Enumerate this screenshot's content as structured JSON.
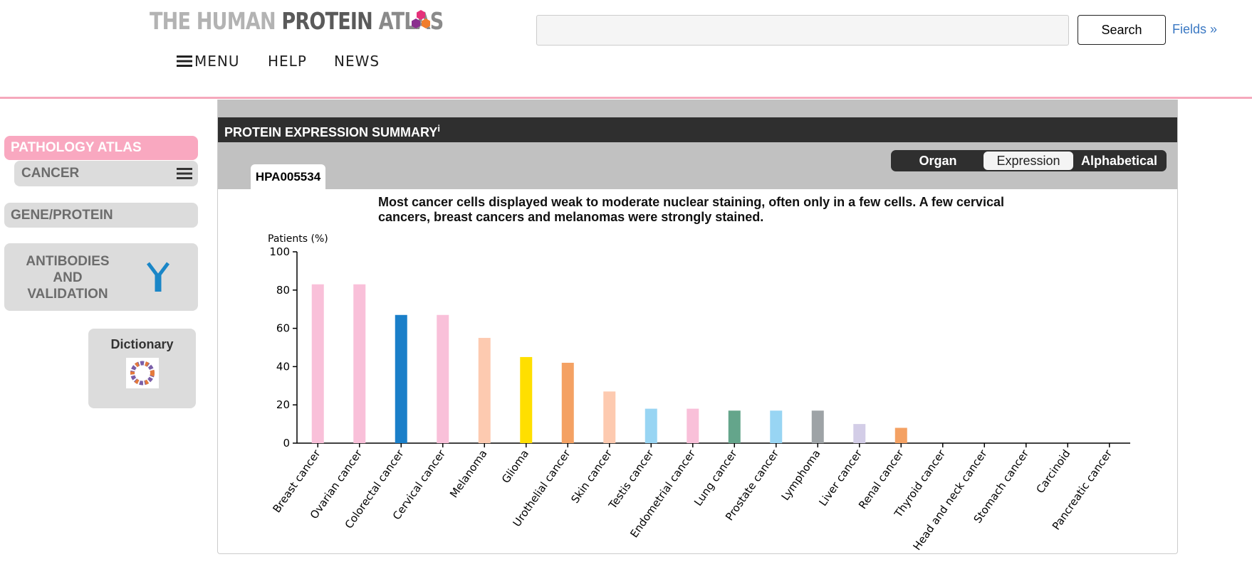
{
  "header": {
    "logo": [
      "THE HUMAN",
      "PROTEIN",
      "ATLAS"
    ],
    "nav": [
      "MENU",
      "HELP",
      "NEWS"
    ],
    "search_button": "Search",
    "fields_link": "Fields »"
  },
  "sidebar": {
    "pathology_atlas": "PATHOLOGY ATLAS",
    "cancer": "CANCER",
    "gene_protein": "GENE/PROTEIN",
    "antibodies": "ANTIBODIES AND VALIDATION",
    "dictionary": "Dictionary"
  },
  "panel": {
    "title": "PROTEIN EXPRESSION SUMMARY",
    "info": "i",
    "tab": "HPA005534",
    "toggle": [
      "Organ",
      "Expression",
      "Alphabetical"
    ],
    "description": "Most cancer cells displayed weak to moderate nuclear staining, often only in a few cells. A few cervical cancers, breast cancers and melanomas were strongly stained."
  },
  "chart_data": {
    "type": "bar",
    "y_label": "Patients (%)",
    "categories": [
      "Breast cancer",
      "Ovarian cancer",
      "Colorectal cancer",
      "Cervical cancer",
      "Melanoma",
      "Glioma",
      "Urothelial cancer",
      "Skin cancer",
      "Testis cancer",
      "Endometrial cancer",
      "Lung cancer",
      "Prostate cancer",
      "Lymphoma",
      "Liver cancer",
      "Renal cancer",
      "Thyroid cancer",
      "Head and neck cancer",
      "Stomach cancer",
      "Carcinoid",
      "Pancreatic cancer"
    ],
    "values": [
      83,
      83,
      67,
      67,
      55,
      45,
      42,
      27,
      18,
      18,
      17,
      17,
      17,
      10,
      8,
      0,
      0,
      0,
      0,
      0
    ],
    "colors": [
      "#f9c0d9",
      "#f9c0d9",
      "#1a7fc9",
      "#f9c0d9",
      "#fdcab0",
      "#ffdf00",
      "#f4a163",
      "#fdcab0",
      "#98d5f3",
      "#f9c0d9",
      "#64a58b",
      "#98d5f3",
      "#9ea3a6",
      "#d3cde7",
      "#f4a163",
      "#f9c0d9",
      "#f9c0d9",
      "#f9c0d9",
      "#f9c0d9",
      "#f9c0d9"
    ],
    "ylim": [
      0,
      100
    ],
    "yticks": [
      0,
      20,
      40,
      60,
      80,
      100
    ]
  }
}
